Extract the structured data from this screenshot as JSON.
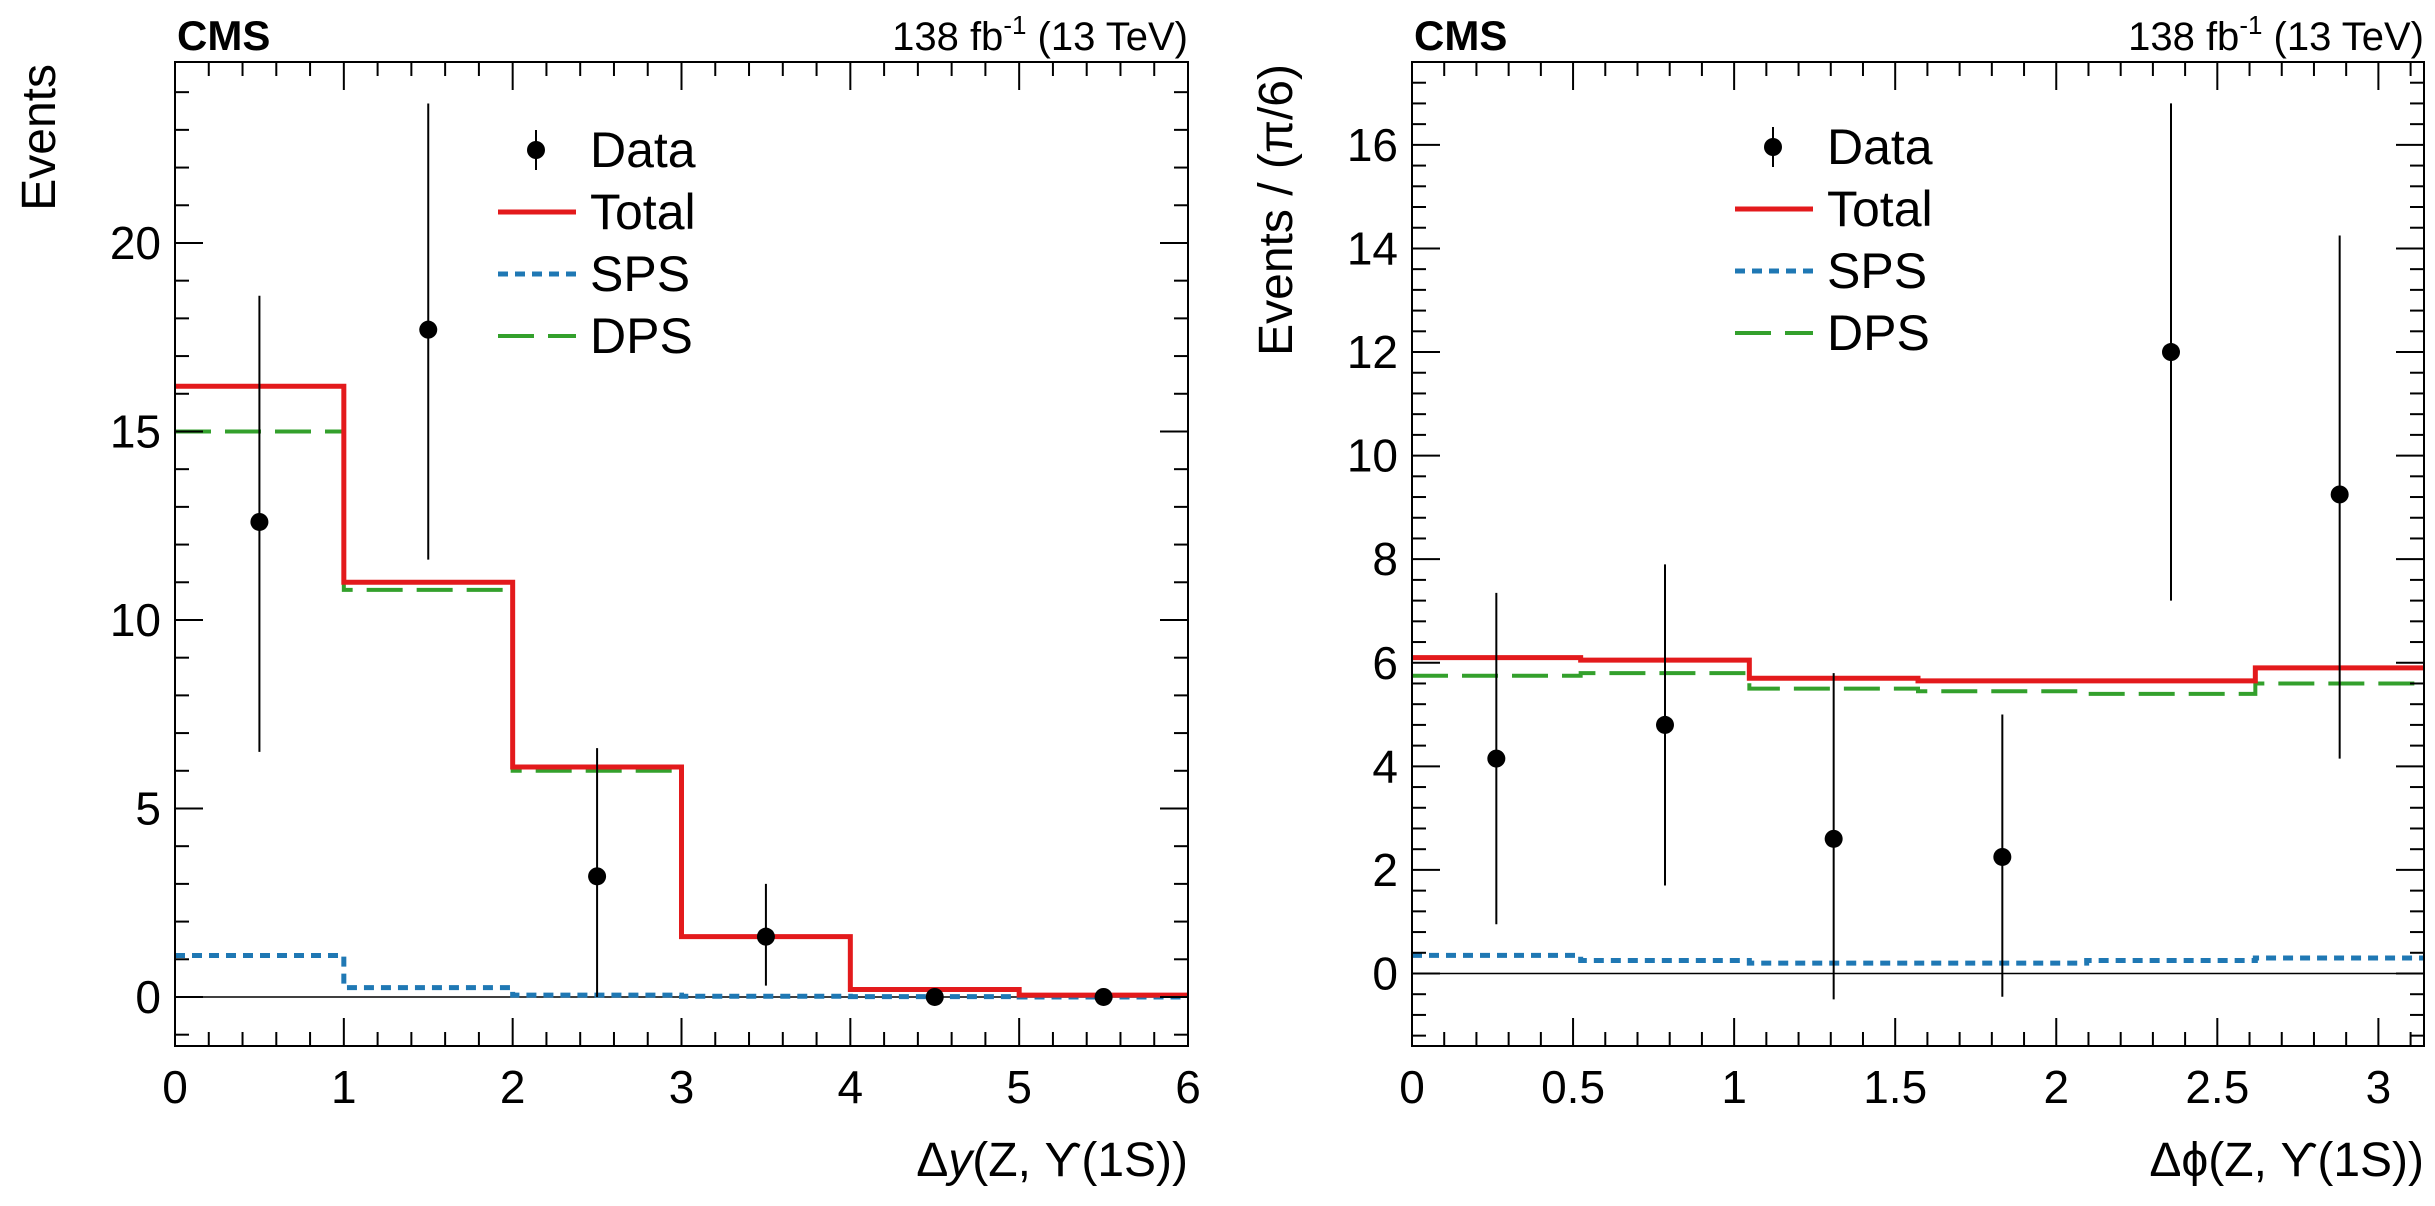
{
  "colors": {
    "total": "#e31a1c",
    "sps": "#1f78b4",
    "dps": "#33a02c",
    "data": "#000000"
  },
  "legend": {
    "data": "Data",
    "total": "Total",
    "sps": "SPS",
    "dps": "DPS"
  },
  "chart_data": [
    {
      "type": "line",
      "experiment": "CMS",
      "lumi": "138 fb",
      "lumi_sup": "-1",
      "energy": " (13 TeV)",
      "xlabel_prefix": "Δ",
      "xlabel_var": "y",
      "xlabel_suffix": "(Z, ϒ(1S))",
      "ylabel": "Events",
      "xlim": [
        0,
        6
      ],
      "ylim": [
        -1.3,
        24.8
      ],
      "xticks": [
        0,
        1,
        2,
        3,
        4,
        5,
        6
      ],
      "xtick_labels": [
        "0",
        "1",
        "2",
        "3",
        "4",
        "5",
        "6"
      ],
      "yticks": [
        0,
        5,
        10,
        15,
        20
      ],
      "ytick_labels": [
        "0",
        "5",
        "10",
        "15",
        "20"
      ],
      "bin_edges": [
        0,
        1,
        2,
        3,
        4,
        5,
        6
      ],
      "series": [
        {
          "name": "Total",
          "style": "step",
          "values": [
            16.2,
            11.0,
            6.1,
            1.6,
            0.2,
            0.05
          ]
        },
        {
          "name": "SPS",
          "style": "step",
          "values": [
            1.1,
            0.25,
            0.05,
            0.02,
            0.01,
            0.0
          ]
        },
        {
          "name": "DPS",
          "style": "step",
          "values": [
            15.0,
            10.8,
            6.0,
            1.6,
            0.2,
            0.05
          ]
        },
        {
          "name": "Data",
          "style": "points",
          "x": [
            0.5,
            1.5,
            2.5,
            3.5,
            4.5,
            5.5
          ],
          "y": [
            12.6,
            17.7,
            3.2,
            1.6,
            0.0,
            0.0
          ],
          "err_low": [
            6.1,
            6.1,
            3.2,
            1.3,
            0.0,
            0.0
          ],
          "err_high": [
            6.0,
            6.0,
            3.4,
            1.4,
            0.0,
            0.0
          ]
        }
      ]
    },
    {
      "type": "line",
      "experiment": "CMS",
      "lumi": "138 fb",
      "lumi_sup": "-1",
      "energy": " (13 TeV)",
      "xlabel_prefix": "Δ",
      "xlabel_var": "",
      "xlabel_suffix": "ϕ(Z, ϒ(1S))",
      "ylabel": "Events / (π/6)",
      "xlim": [
        0,
        3.1416
      ],
      "ylim": [
        -1.4,
        17.6
      ],
      "xticks": [
        0,
        0.5,
        1,
        1.5,
        2,
        2.5,
        3
      ],
      "xtick_labels": [
        "0",
        "0.5",
        "1",
        "1.5",
        "2",
        "2.5",
        "3"
      ],
      "yticks": [
        0,
        2,
        4,
        6,
        8,
        10,
        12,
        14,
        16
      ],
      "ytick_labels": [
        "0",
        "2",
        "4",
        "6",
        "8",
        "10",
        "12",
        "14",
        "16"
      ],
      "bin_edges": [
        0,
        0.5236,
        1.0472,
        1.5708,
        2.0944,
        2.618,
        3.1416
      ],
      "series": [
        {
          "name": "Total",
          "style": "step",
          "values": [
            6.1,
            6.05,
            5.7,
            5.65,
            5.65,
            5.9
          ]
        },
        {
          "name": "SPS",
          "style": "step",
          "values": [
            0.35,
            0.25,
            0.2,
            0.2,
            0.25,
            0.3
          ]
        },
        {
          "name": "DPS",
          "style": "step",
          "values": [
            5.75,
            5.8,
            5.5,
            5.45,
            5.4,
            5.6
          ]
        },
        {
          "name": "Data",
          "style": "points",
          "x": [
            0.2618,
            0.7854,
            1.309,
            1.8326,
            2.3562,
            2.8798
          ],
          "y": [
            4.15,
            4.8,
            2.6,
            2.25,
            12.0,
            9.25
          ],
          "err_low": [
            3.2,
            3.1,
            3.1,
            2.7,
            4.8,
            5.1
          ],
          "err_high": [
            3.2,
            3.1,
            3.2,
            2.75,
            4.8,
            5.0
          ]
        }
      ]
    }
  ]
}
